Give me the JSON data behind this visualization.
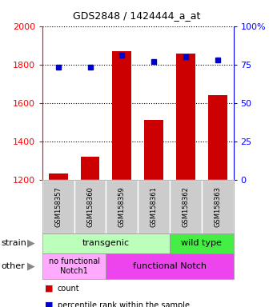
{
  "title": "GDS2848 / 1424444_a_at",
  "samples": [
    "GSM158357",
    "GSM158360",
    "GSM158359",
    "GSM158361",
    "GSM158362",
    "GSM158363"
  ],
  "counts": [
    1230,
    1320,
    1870,
    1510,
    1855,
    1640
  ],
  "percentiles": [
    73,
    73,
    81,
    77,
    80,
    78
  ],
  "ylim_left": [
    1200,
    2000
  ],
  "ylim_right": [
    0,
    100
  ],
  "yticks_left": [
    1200,
    1400,
    1600,
    1800,
    2000
  ],
  "yticks_right": [
    0,
    25,
    50,
    75,
    100
  ],
  "bar_color": "#cc0000",
  "dot_color": "#0000cc",
  "transgenic_color": "#bbffbb",
  "wildtype_color": "#44ee44",
  "no_func_color": "#ffaaff",
  "func_color": "#ee44ee",
  "legend_count_color": "#cc0000",
  "legend_pct_color": "#0000cc",
  "background_color": "#ffffff",
  "sample_box_color": "#cccccc"
}
